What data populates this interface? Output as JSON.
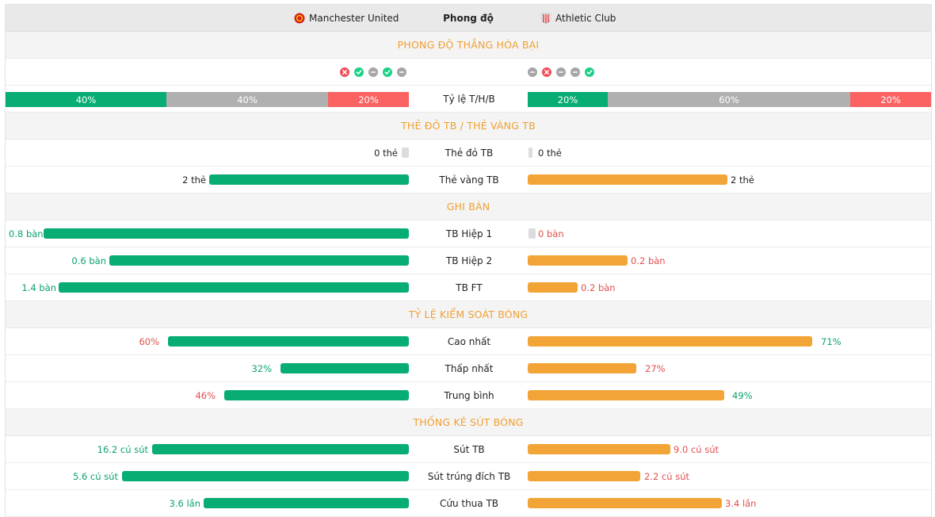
{
  "header": {
    "home_team": "Manchester United",
    "title": "Phong độ",
    "away_team": "Athletic Club"
  },
  "form_section": {
    "title": "PHONG ĐỘ THẮNG HÒA BẠI",
    "home_results": [
      "L",
      "W",
      "D",
      "W",
      "D"
    ],
    "away_results": [
      "D",
      "L",
      "D",
      "D",
      "W"
    ],
    "ratio_label": "Tỷ lệ T/H/B",
    "home_ratio": {
      "win": "40%",
      "draw": "40%",
      "lose": "20%"
    },
    "away_ratio": {
      "win": "20%",
      "draw": "60%",
      "lose": "20%"
    }
  },
  "cards_section": {
    "title": "THẺ ĐỎ TB / THẺ VÀNG TB",
    "red_label": "Thẻ đỏ TB",
    "yellow_label": "Thẻ vàng TB",
    "home_red": "0 thẻ",
    "away_red": "0 thẻ",
    "home_yellow": "2 thẻ",
    "away_yellow": "2 thẻ"
  },
  "goals_section": {
    "title": "GHI BÀN",
    "rows": [
      {
        "label": "TB Hiệp 1",
        "home": "0.8 bàn",
        "away": "0 bàn"
      },
      {
        "label": "TB Hiệp 2",
        "home": "0.6 bàn",
        "away": "0.2 bàn"
      },
      {
        "label": "TB FT",
        "home": "1.4 bàn",
        "away": "0.2 bàn"
      }
    ]
  },
  "possession_section": {
    "title": "TỶ LỆ KIỂM SOÁT BÓNG",
    "rows": [
      {
        "label": "Cao nhất",
        "home": "60%",
        "away": "71%"
      },
      {
        "label": "Thấp nhất",
        "home": "32%",
        "away": "27%"
      },
      {
        "label": "Trung bình",
        "home": "46%",
        "away": "49%"
      }
    ]
  },
  "shots_section": {
    "title": "THỐNG KÊ SÚT BÓNG",
    "rows": [
      {
        "label": "Sút TB",
        "home": "16.2 cú sút",
        "away": "9.0 cú sút"
      },
      {
        "label": "Sút trúng đích TB",
        "home": "5.6 cú sút",
        "away": "2.2 cú sút"
      },
      {
        "label": "Cứu thua TB",
        "home": "3.6 lần",
        "away": "3.4 lần"
      }
    ]
  },
  "colors": {
    "home_bar": "#07ad72",
    "away_bar": "#f3a436",
    "section_title": "#f0a030",
    "win": "#1fd08a",
    "lose": "#ef4d5a",
    "draw": "#a6a6a6"
  }
}
